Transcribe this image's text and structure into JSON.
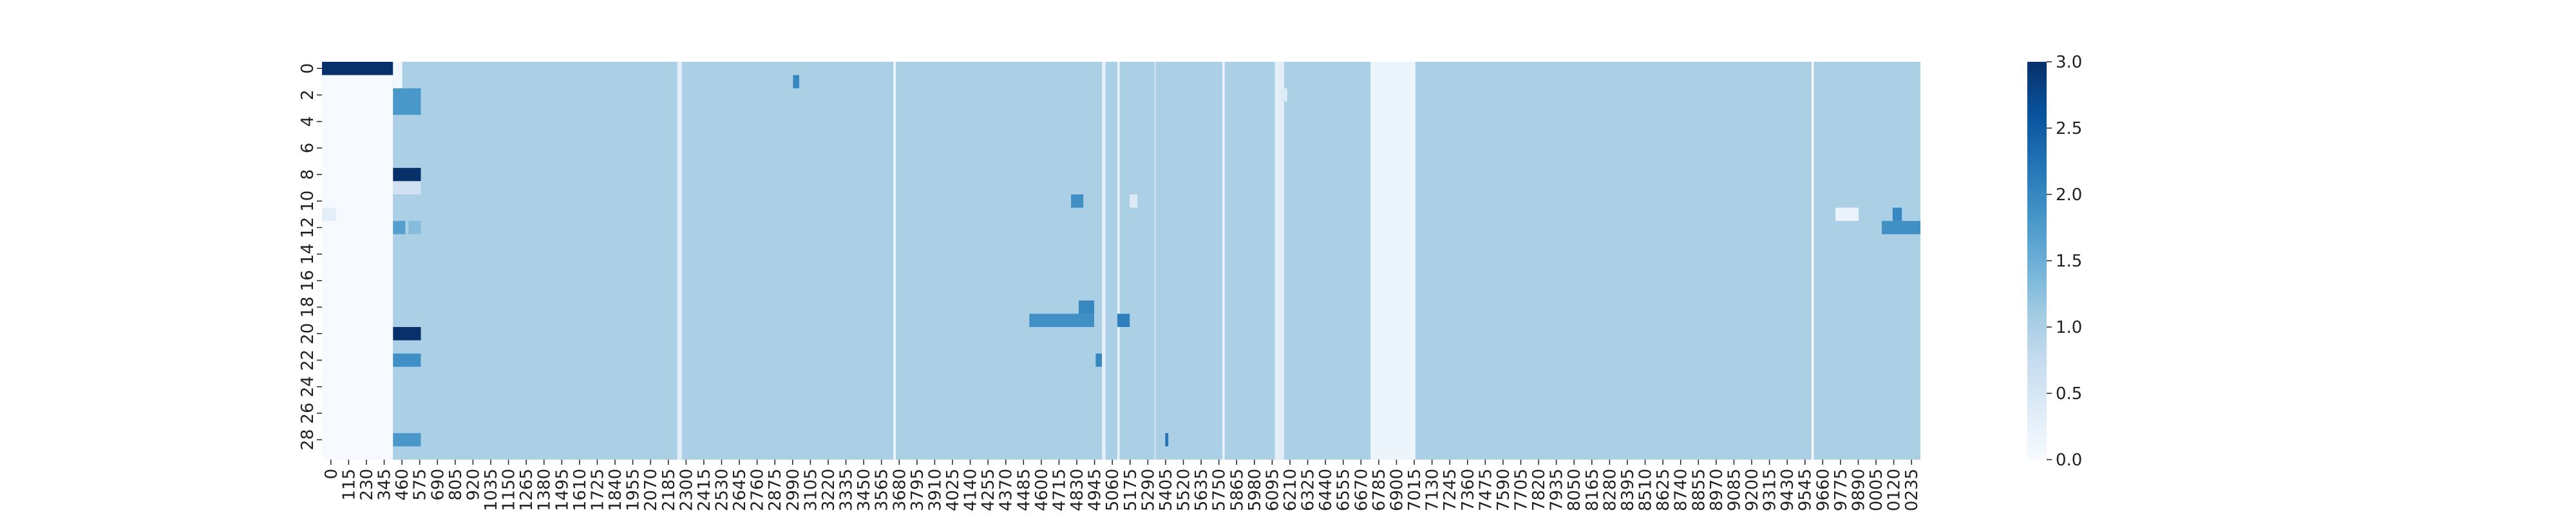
{
  "chart_data": {
    "type": "heatmap",
    "title": "",
    "xlabel": "",
    "ylabel": "",
    "colormap": "Blues",
    "colorbar": {
      "min": 0.0,
      "max": 3.0,
      "ticks": [
        "0.0",
        "0.5",
        "1.0",
        "1.5",
        "2.0",
        "2.5",
        "3.0"
      ]
    },
    "x_ticks": [
      "0",
      "115",
      "230",
      "345",
      "460",
      "575",
      "690",
      "805",
      "920",
      "1035",
      "1150",
      "1265",
      "1380",
      "1495",
      "1610",
      "1725",
      "1840",
      "1955",
      "2070",
      "2185",
      "2300",
      "2415",
      "2530",
      "2645",
      "2760",
      "2875",
      "2990",
      "3105",
      "3220",
      "3335",
      "3450",
      "3565",
      "3680",
      "3795",
      "3910",
      "4025",
      "4140",
      "4255",
      "4370",
      "4485",
      "4600",
      "4715",
      "4830",
      "4945",
      "5060",
      "5175",
      "5290",
      "5405",
      "5520",
      "5635",
      "5750",
      "5865",
      "5980",
      "6095",
      "6210",
      "6325",
      "6440",
      "6555",
      "6670",
      "6785",
      "6900",
      "7015",
      "7130",
      "7245",
      "7360",
      "7475",
      "7590",
      "7705",
      "7820",
      "7935",
      "8050",
      "8165",
      "8280",
      "8395",
      "8510",
      "8625",
      "8740",
      "8855",
      "8970",
      "9085",
      "9200",
      "9315",
      "9430",
      "9545",
      "9660",
      "9775",
      "9890",
      "0005",
      "0120",
      "0235"
    ],
    "y_ticks": [
      "0",
      "2",
      "4",
      "6",
      "8",
      "10",
      "12",
      "14",
      "16",
      "18",
      "20",
      "22",
      "24",
      "26",
      "28"
    ],
    "rows": 30,
    "columns": 10350,
    "base_value": 1.0,
    "column_bands": [
      {
        "x": [
          0,
          460
        ],
        "value": 0.02
      },
      {
        "x": [
          460,
          520
        ],
        "value": 1.0
      },
      {
        "x": [
          2300,
          2330
        ],
        "value": 0.3
      },
      {
        "x": [
          3700,
          3715
        ],
        "value": 0.05
      },
      {
        "x": [
          5050,
          5075
        ],
        "value": 0.3
      },
      {
        "x": [
          5150,
          5165
        ],
        "value": 0.2
      },
      {
        "x": [
          5390,
          5400
        ],
        "value": 0.6
      },
      {
        "x": [
          5830,
          5845
        ],
        "value": 0.2
      },
      {
        "x": [
          6170,
          6230
        ],
        "value": 0.3
      },
      {
        "x": [
          6790,
          7080
        ],
        "value": 0.15
      },
      {
        "x": [
          9645,
          9660
        ],
        "value": 0.05
      }
    ],
    "cells": [
      {
        "row": 0,
        "x": [
          0,
          460
        ],
        "value": 3.0
      },
      {
        "row": 0,
        "x": [
          460,
          520
        ],
        "value": 0.1
      },
      {
        "row": 1,
        "x": [
          460,
          520
        ],
        "value": 0.1
      },
      {
        "row": 2,
        "x": [
          460,
          640
        ],
        "value": 1.8
      },
      {
        "row": 3,
        "x": [
          460,
          640
        ],
        "value": 1.8
      },
      {
        "row": 1,
        "x": [
          3050,
          3090
        ],
        "value": 2.0
      },
      {
        "row": 8,
        "x": [
          460,
          640
        ],
        "value": 3.0
      },
      {
        "row": 9,
        "x": [
          460,
          640
        ],
        "value": 0.6
      },
      {
        "row": 11,
        "x": [
          0,
          90
        ],
        "value": 0.3
      },
      {
        "row": 12,
        "x": [
          460,
          540
        ],
        "value": 1.7
      },
      {
        "row": 12,
        "x": [
          560,
          640
        ],
        "value": 1.3
      },
      {
        "row": 19,
        "x": [
          4580,
          5000
        ],
        "value": 1.9
      },
      {
        "row": 18,
        "x": [
          4900,
          5000
        ],
        "value": 2.0
      },
      {
        "row": 19,
        "x": [
          5150,
          5230
        ],
        "value": 2.1
      },
      {
        "row": 10,
        "x": [
          4850,
          4930
        ],
        "value": 1.9
      },
      {
        "row": 20,
        "x": [
          460,
          640
        ],
        "value": 3.0
      },
      {
        "row": 22,
        "x": [
          460,
          640
        ],
        "value": 1.9
      },
      {
        "row": 22,
        "x": [
          5010,
          5050
        ],
        "value": 2.0
      },
      {
        "row": 28,
        "x": [
          460,
          640
        ],
        "value": 1.8
      },
      {
        "row": 28,
        "x": [
          5460,
          5480
        ],
        "value": 2.2
      },
      {
        "row": 11,
        "x": [
          9800,
          9950
        ],
        "value": 0.2
      },
      {
        "row": 12,
        "x": [
          10100,
          10350
        ],
        "value": 1.9
      },
      {
        "row": 11,
        "x": [
          10170,
          10230
        ],
        "value": 2.0
      },
      {
        "row": 10,
        "x": [
          5230,
          5280
        ],
        "value": 0.4
      },
      {
        "row": 2,
        "x": [
          6210,
          6250
        ],
        "value": 0.4
      }
    ]
  }
}
